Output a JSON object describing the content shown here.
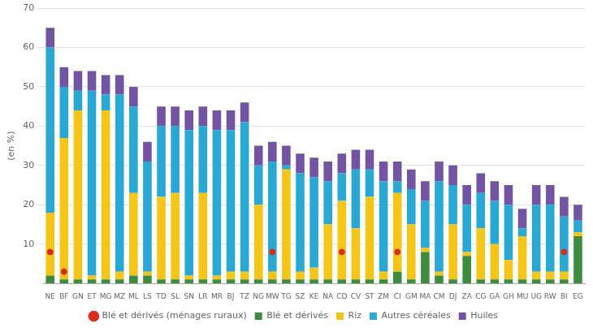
{
  "chart_data": {
    "type": "bar",
    "stacked": true,
    "ylabel": "(en %)",
    "categories": [
      "NE",
      "BF",
      "GN",
      "ET",
      "MG",
      "MZ",
      "ML",
      "LS",
      "TD",
      "SL",
      "SN",
      "LR",
      "MR",
      "BJ",
      "TZ",
      "NG",
      "MW",
      "TG",
      "SZ",
      "KE",
      "NA",
      "CD",
      "CV",
      "ST",
      "ZM",
      "CI",
      "GM",
      "MA",
      "CM",
      "DJ",
      "ZA",
      "CG",
      "GA",
      "GH",
      "MU",
      "UG",
      "RW",
      "BI",
      "EG"
    ],
    "series": [
      {
        "name": "Blé et dérivés",
        "color": "#3d8c40",
        "values": [
          2,
          1,
          1,
          1,
          1,
          1,
          2,
          2,
          1,
          1,
          1,
          1,
          1,
          1,
          1,
          1,
          1,
          1,
          1,
          1,
          1,
          1,
          1,
          1,
          1,
          3,
          1,
          8,
          2,
          1,
          7,
          1,
          1,
          1,
          1,
          1,
          1,
          1,
          12
        ]
      },
      {
        "name": "Riz",
        "color": "#f5c518",
        "values": [
          16,
          36,
          43,
          1,
          43,
          2,
          21,
          1,
          21,
          22,
          1,
          22,
          1,
          2,
          2,
          19,
          2,
          28,
          2,
          3,
          14,
          20,
          13,
          21,
          2,
          20,
          14,
          1,
          1,
          14,
          1,
          13,
          9,
          5,
          11,
          2,
          2,
          2,
          1
        ]
      },
      {
        "name": "Autres céréales",
        "color": "#29a8d4",
        "values": [
          42,
          13,
          5,
          47,
          4,
          45,
          22,
          28,
          18,
          17,
          37,
          17,
          37,
          36,
          38,
          10,
          28,
          1,
          25,
          23,
          11,
          7,
          15,
          7,
          23,
          3,
          9,
          12,
          23,
          10,
          12,
          9,
          11,
          14,
          2,
          17,
          17,
          14,
          3
        ]
      },
      {
        "name": "Huiles",
        "color": "#7254a3",
        "values": [
          5,
          5,
          5,
          5,
          5,
          5,
          5,
          5,
          5,
          5,
          5,
          5,
          5,
          5,
          5,
          5,
          5,
          5,
          5,
          5,
          5,
          5,
          5,
          5,
          5,
          5,
          5,
          5,
          5,
          5,
          5,
          5,
          5,
          5,
          5,
          5,
          5,
          5,
          4
        ]
      },
      {
        "name": "Blé et dérivés (ménages ruraux)",
        "type": "scatter",
        "marker": "o",
        "color": "#d92b1e",
        "values": [
          8,
          3,
          null,
          null,
          null,
          null,
          null,
          null,
          null,
          null,
          null,
          null,
          null,
          null,
          null,
          null,
          8,
          null,
          null,
          null,
          null,
          8,
          null,
          null,
          null,
          8,
          null,
          null,
          null,
          null,
          null,
          null,
          null,
          null,
          null,
          null,
          null,
          8,
          null
        ]
      }
    ],
    "ylim": [
      0,
      70
    ],
    "yticks": [
      10,
      20,
      30,
      40,
      50,
      60,
      70
    ],
    "grid": true,
    "legend": "bottom"
  }
}
